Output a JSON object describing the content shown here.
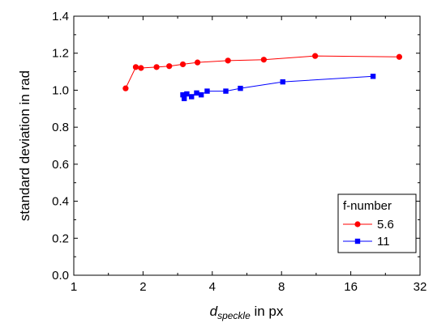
{
  "chart_data": {
    "type": "scatter",
    "xlabel": {
      "main": "d",
      "sub": "speckle",
      "rest": " in px"
    },
    "ylabel": "standard deviation in rad",
    "x_scale": "log2",
    "xlim": [
      1,
      32
    ],
    "ylim": [
      0.0,
      1.4
    ],
    "x_ticks": [
      1,
      2,
      4,
      8,
      16,
      32
    ],
    "x_tick_labels": [
      "1",
      "2",
      "4",
      "8",
      "16",
      "32"
    ],
    "y_ticks": [
      0.0,
      0.2,
      0.4,
      0.6,
      0.8,
      1.0,
      1.2,
      1.4
    ],
    "y_tick_labels": [
      "0.0",
      "0.2",
      "0.4",
      "0.6",
      "0.8",
      "1.0",
      "1.2",
      "1.4"
    ],
    "grid": false,
    "legend": {
      "title": "f-number",
      "placement": "bottom-right"
    },
    "series": [
      {
        "name": "5.6",
        "color": "#ff0000",
        "marker": "circle",
        "x": [
          1.68,
          1.86,
          1.96,
          2.29,
          2.6,
          2.98,
          3.45,
          4.68,
          6.7,
          11.2,
          26.0
        ],
        "y": [
          1.01,
          1.125,
          1.12,
          1.125,
          1.13,
          1.14,
          1.15,
          1.16,
          1.165,
          1.185,
          1.18
        ]
      },
      {
        "name": "11",
        "color": "#0000ff",
        "marker": "square",
        "x": [
          2.98,
          3.02,
          3.1,
          3.25,
          3.42,
          3.58,
          3.8,
          4.58,
          5.3,
          8.1,
          20.0
        ],
        "y": [
          0.975,
          0.955,
          0.98,
          0.965,
          0.985,
          0.975,
          0.995,
          0.995,
          1.01,
          1.045,
          1.075
        ]
      }
    ]
  }
}
